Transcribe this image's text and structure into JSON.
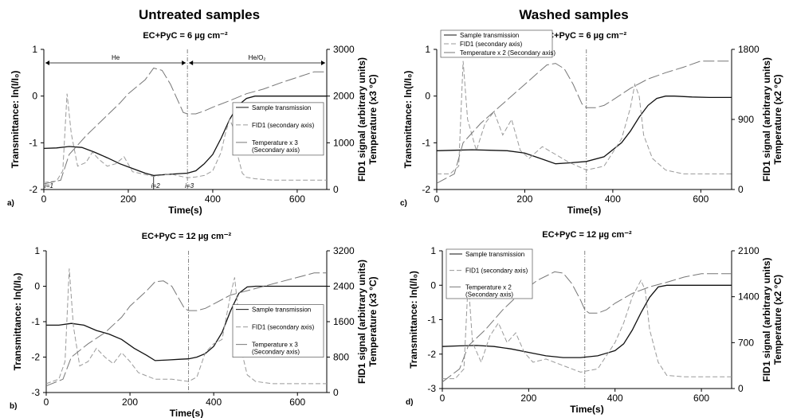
{
  "headers": {
    "left": "Untreated samples",
    "right": "Washed samples"
  },
  "chart_data": [
    {
      "panel_label": "a)",
      "type": "line",
      "title": "EC+PyC = 6 µg cm⁻²",
      "xlabel": "Time(s)",
      "ylabel": "Transmittance: ln(I/I₀)",
      "y2label": "FID1 signal (arbitrary units)",
      "y3label": "Temperature (x3 °C)",
      "xlim": [
        0,
        670
      ],
      "ylim": [
        -2,
        1
      ],
      "y2lim": [
        0,
        3000
      ],
      "xticks": [
        "0",
        "200",
        "400",
        "600"
      ],
      "yticks": [
        "1",
        "0",
        "-1",
        "-2"
      ],
      "y2ticks": [
        "3000",
        "2000",
        "1000",
        "0"
      ],
      "switch_x": 340,
      "regions": [
        {
          "label": "He",
          "from": 0,
          "to": 340
        },
        {
          "label": "He/O₂",
          "from": 340,
          "to": 670
        }
      ],
      "annotations": [
        {
          "text": "i=1",
          "x": 0
        },
        {
          "text": "i=2",
          "x": 260
        },
        {
          "text": "i=3",
          "x": 340
        }
      ],
      "legend": [
        "Sample transmission",
        "FID1 (secondary axis)",
        "Temperature x 3 (Secondary axis)"
      ],
      "legend_pos": "right",
      "series": [
        {
          "name": "Sample transmission",
          "style": "solid",
          "axis": "y",
          "x": [
            0,
            30,
            60,
            90,
            120,
            150,
            180,
            210,
            240,
            260,
            290,
            320,
            340,
            360,
            380,
            400,
            420,
            440,
            460,
            480,
            500,
            520,
            560,
            600,
            640,
            670
          ],
          "y": [
            -1.12,
            -1.11,
            -1.08,
            -1.1,
            -1.2,
            -1.32,
            -1.45,
            -1.55,
            -1.65,
            -1.7,
            -1.68,
            -1.66,
            -1.65,
            -1.6,
            -1.45,
            -1.25,
            -0.9,
            -0.5,
            -0.2,
            -0.05,
            0,
            0,
            0,
            0,
            0,
            0
          ]
        },
        {
          "name": "FID1 (secondary axis)",
          "style": "dash",
          "axis": "y2",
          "x": [
            0,
            30,
            45,
            55,
            65,
            80,
            100,
            115,
            130,
            150,
            170,
            190,
            210,
            240,
            260,
            300,
            340,
            360,
            380,
            400,
            420,
            430,
            440,
            450,
            460,
            470,
            480,
            500,
            540,
            600,
            670
          ],
          "y": [
            150,
            180,
            400,
            2050,
            1200,
            500,
            580,
            800,
            650,
            500,
            550,
            700,
            380,
            320,
            280,
            330,
            250,
            270,
            300,
            400,
            800,
            1200,
            1500,
            1300,
            700,
            350,
            260,
            230,
            200,
            200,
            200
          ]
        },
        {
          "name": "Temperature x 3 (Secondary axis)",
          "style": "longdash",
          "axis": "y2",
          "x": [
            0,
            40,
            60,
            100,
            140,
            180,
            200,
            240,
            260,
            280,
            300,
            330,
            340,
            360,
            380,
            400,
            440,
            480,
            520,
            560,
            600,
            640,
            670
          ],
          "y": [
            120,
            200,
            750,
            1150,
            1500,
            1850,
            2050,
            2350,
            2600,
            2550,
            2250,
            1650,
            1620,
            1620,
            1680,
            1760,
            1900,
            2050,
            2150,
            2280,
            2400,
            2520,
            2520
          ]
        }
      ]
    },
    {
      "panel_label": "b)",
      "type": "line",
      "title": "EC+PyC = 12 µg cm⁻²",
      "xlabel": "Time(s)",
      "ylabel": "Transmittance: ln(I/I₀)",
      "y2label": "FID1 signal (arbitrary units)",
      "y3label": "Temperature (x3 °C)",
      "xlim": [
        0,
        670
      ],
      "ylim": [
        -3,
        1
      ],
      "y2lim": [
        0,
        3200
      ],
      "xticks": [
        "0",
        "200",
        "400",
        "600"
      ],
      "yticks": [
        "1",
        "0",
        "-1",
        "-2",
        "-3"
      ],
      "y2ticks": [
        "3200",
        "2400",
        "1600",
        "800",
        "0"
      ],
      "switch_x": 340,
      "legend": [
        "Sample transmission",
        "FID1 (secondary axis)",
        "Temperature x 3 (Secondary axis)"
      ],
      "legend_pos": "right",
      "series": [
        {
          "name": "Sample transmission",
          "style": "solid",
          "axis": "y",
          "x": [
            0,
            30,
            60,
            90,
            120,
            150,
            180,
            210,
            240,
            260,
            290,
            320,
            340,
            360,
            380,
            400,
            420,
            440,
            460,
            480,
            500,
            540,
            600,
            670
          ],
          "y": [
            -1.1,
            -1.1,
            -1.05,
            -1.1,
            -1.25,
            -1.35,
            -1.5,
            -1.75,
            -1.95,
            -2.1,
            -2.08,
            -2.06,
            -2.05,
            -2.0,
            -1.9,
            -1.7,
            -1.3,
            -0.7,
            -0.2,
            -0.02,
            0,
            0,
            0,
            0
          ]
        },
        {
          "name": "FID1 (secondary axis)",
          "style": "dash",
          "axis": "y2",
          "x": [
            0,
            30,
            45,
            55,
            65,
            80,
            100,
            120,
            140,
            160,
            180,
            200,
            220,
            260,
            300,
            340,
            360,
            380,
            400,
            420,
            430,
            440,
            450,
            460,
            470,
            480,
            500,
            540,
            600,
            670
          ],
          "y": [
            200,
            300,
            700,
            2800,
            1500,
            600,
            700,
            1000,
            800,
            650,
            900,
            700,
            450,
            300,
            300,
            250,
            350,
            900,
            1100,
            1200,
            1700,
            2200,
            2600,
            1700,
            800,
            400,
            250,
            200,
            200,
            200
          ]
        },
        {
          "name": "Temperature x 3 (Secondary axis)",
          "style": "longdash",
          "axis": "y2",
          "x": [
            0,
            40,
            60,
            100,
            140,
            180,
            200,
            240,
            260,
            280,
            300,
            330,
            340,
            360,
            380,
            400,
            440,
            480,
            520,
            560,
            600,
            640,
            670
          ],
          "y": [
            150,
            300,
            800,
            1100,
            1350,
            1700,
            1950,
            2300,
            2500,
            2520,
            2400,
            1900,
            1850,
            1850,
            1900,
            2000,
            2200,
            2300,
            2400,
            2500,
            2600,
            2700,
            2700
          ]
        }
      ]
    },
    {
      "panel_label": "c)",
      "type": "line",
      "title": "EC+PyC = 6 µg cm⁻²",
      "xlabel": "Time(s)",
      "ylabel": "Transmittance: ln(I/I₀)",
      "y2label": "FID1 signal (arbitrary units)",
      "y3label": "Temperature (x2 °C)",
      "xlim": [
        0,
        670
      ],
      "ylim": [
        -2,
        1
      ],
      "y2lim": [
        0,
        1800
      ],
      "xticks": [
        "0",
        "200",
        "400",
        "600"
      ],
      "yticks": [
        "1",
        "0",
        "-1",
        "-2"
      ],
      "y2ticks": [
        "1800",
        "900",
        "0"
      ],
      "switch_x": 340,
      "legend": [
        "Sample transmission",
        "FID1 (secondary axis)",
        "Temperature x 2 (Secondary axis)"
      ],
      "legend_pos": "top-left",
      "series": [
        {
          "name": "Sample transmission",
          "style": "solid",
          "axis": "y",
          "x": [
            0,
            40,
            80,
            120,
            160,
            200,
            240,
            270,
            300,
            340,
            380,
            420,
            440,
            460,
            480,
            500,
            520,
            540,
            580,
            620,
            670
          ],
          "y": [
            -1.17,
            -1.16,
            -1.15,
            -1.16,
            -1.17,
            -1.22,
            -1.35,
            -1.45,
            -1.43,
            -1.4,
            -1.3,
            -1.0,
            -0.75,
            -0.45,
            -0.2,
            -0.05,
            0,
            0,
            -0.02,
            -0.03,
            -0.03
          ]
        },
        {
          "name": "FID1 (secondary axis)",
          "style": "dash",
          "axis": "y2",
          "x": [
            0,
            30,
            50,
            60,
            70,
            90,
            110,
            130,
            150,
            170,
            190,
            210,
            240,
            270,
            300,
            340,
            380,
            420,
            440,
            450,
            460,
            470,
            490,
            520,
            560,
            620,
            670
          ],
          "y": [
            200,
            200,
            300,
            1650,
            900,
            500,
            850,
            1000,
            700,
            900,
            500,
            400,
            550,
            450,
            350,
            250,
            300,
            650,
            1050,
            1350,
            1200,
            700,
            400,
            250,
            200,
            200,
            200
          ]
        },
        {
          "name": "Temperature x 2 (Secondary axis)",
          "style": "longdash",
          "axis": "y2",
          "x": [
            0,
            40,
            60,
            100,
            140,
            180,
            220,
            250,
            270,
            290,
            310,
            330,
            340,
            360,
            380,
            400,
            440,
            480,
            520,
            560,
            600,
            640,
            670
          ],
          "y": [
            80,
            200,
            600,
            850,
            1050,
            1250,
            1450,
            1600,
            1620,
            1550,
            1350,
            1100,
            1050,
            1050,
            1080,
            1150,
            1300,
            1420,
            1500,
            1570,
            1650,
            1650,
            1650
          ]
        }
      ]
    },
    {
      "panel_label": "d)",
      "type": "line",
      "title": "EC+PyC = 12 µg cm⁻²",
      "xlabel": "Time(s)",
      "ylabel": "Transmittance: ln(I/I₀)",
      "y2label": "FID1 signal (arbitrary units)",
      "y3label": "Temperature (x2 °C)",
      "xlim": [
        0,
        670
      ],
      "ylim": [
        -3,
        1
      ],
      "y2lim": [
        0,
        2100
      ],
      "xticks": [
        "0",
        "200",
        "400",
        "600"
      ],
      "yticks": [
        "1",
        "0",
        "-1",
        "-2",
        "-3"
      ],
      "y2ticks": [
        "2100",
        "1400",
        "700",
        "0"
      ],
      "switch_x": 330,
      "legend": [
        "Sample transmission",
        "FID1 (secondary axis)",
        "Temperature x 2 (Secondary axis)"
      ],
      "legend_pos": "top-left",
      "series": [
        {
          "name": "Sample transmission",
          "style": "solid",
          "axis": "y",
          "x": [
            0,
            40,
            80,
            120,
            160,
            200,
            240,
            280,
            320,
            360,
            400,
            420,
            440,
            460,
            480,
            500,
            520,
            540,
            600,
            670
          ],
          "y": [
            -1.78,
            -1.76,
            -1.75,
            -1.78,
            -1.85,
            -1.95,
            -2.05,
            -2.1,
            -2.1,
            -2.05,
            -1.9,
            -1.7,
            -1.3,
            -0.8,
            -0.35,
            -0.05,
            0,
            0,
            0,
            0
          ]
        },
        {
          "name": "FID1 (secondary axis)",
          "style": "dash",
          "axis": "y2",
          "x": [
            0,
            30,
            50,
            60,
            70,
            90,
            110,
            130,
            150,
            170,
            190,
            210,
            240,
            280,
            320,
            360,
            400,
            420,
            440,
            460,
            470,
            480,
            500,
            520,
            560,
            620,
            670
          ],
          "y": [
            150,
            150,
            300,
            1650,
            700,
            400,
            800,
            1000,
            700,
            850,
            550,
            400,
            450,
            350,
            250,
            300,
            700,
            1000,
            1400,
            1650,
            1500,
            900,
            400,
            200,
            180,
            180,
            180
          ]
        },
        {
          "name": "Temperature x 2 (Secondary axis)",
          "style": "longdash",
          "axis": "y2",
          "x": [
            0,
            40,
            60,
            100,
            140,
            180,
            220,
            260,
            280,
            300,
            320,
            330,
            340,
            360,
            380,
            400,
            440,
            480,
            520,
            560,
            600,
            640,
            670
          ],
          "y": [
            100,
            300,
            650,
            900,
            1200,
            1450,
            1650,
            1780,
            1760,
            1600,
            1350,
            1200,
            1150,
            1150,
            1200,
            1300,
            1450,
            1550,
            1620,
            1700,
            1750,
            1750,
            1750
          ]
        }
      ]
    }
  ]
}
